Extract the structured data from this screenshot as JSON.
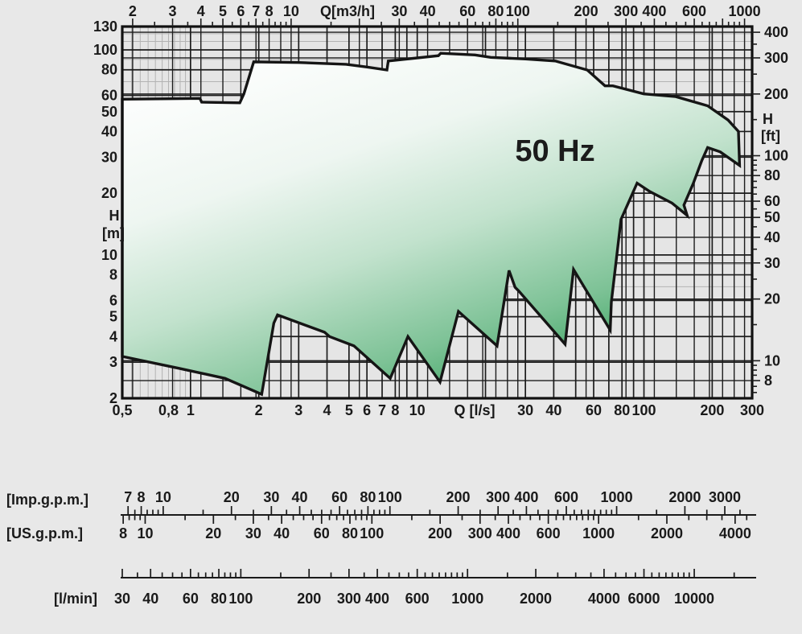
{
  "chart_data": {
    "type": "area",
    "title": "50 Hz",
    "x_axis_bottom": {
      "label": "Q [l/s]",
      "min": 0.5,
      "max": 300,
      "labeled_ticks": [
        {
          "v": 0.5,
          "t": "0,5"
        },
        {
          "v": 0.8,
          "t": "0,8"
        },
        {
          "v": 1,
          "t": "1"
        },
        {
          "v": 2,
          "t": "2"
        },
        {
          "v": 3,
          "t": "3"
        },
        {
          "v": 4,
          "t": "4"
        },
        {
          "v": 5,
          "t": "5"
        },
        {
          "v": 6,
          "t": "6"
        },
        {
          "v": 7,
          "t": "7"
        },
        {
          "v": 8,
          "t": "8"
        },
        {
          "v": 10,
          "t": "10"
        },
        {
          "v": 30,
          "t": "30"
        },
        {
          "v": 40,
          "t": "40"
        },
        {
          "v": 60,
          "t": "60"
        },
        {
          "v": 80,
          "t": "80"
        },
        {
          "v": 100,
          "t": "100"
        },
        {
          "v": 200,
          "t": "200"
        },
        {
          "v": 300,
          "t": "300"
        }
      ]
    },
    "x_axis_top": {
      "label": "Q[m3/h]",
      "factor_from_ls": 3.6,
      "labeled_ticks": [
        2,
        3,
        4,
        5,
        6,
        7,
        8,
        10,
        30,
        40,
        60,
        80,
        100,
        200,
        300,
        400,
        600,
        1000
      ],
      "major_ticks": [
        2,
        3,
        4,
        5,
        6,
        7,
        8,
        10,
        20,
        30,
        40,
        60,
        80,
        100,
        200,
        300,
        400,
        600,
        800,
        1000
      ]
    },
    "y_axis_left": {
      "label_lines": [
        "H",
        "[m]"
      ],
      "min": 2,
      "max": 130,
      "labeled_ticks": [
        130,
        100,
        80,
        60,
        50,
        40,
        30,
        20,
        10,
        8,
        6,
        5,
        4,
        3,
        2
      ]
    },
    "y_axis_right": {
      "label_lines": [
        "H",
        "[ft]"
      ],
      "factor_from_m": 3.2808,
      "labeled_ticks": [
        400,
        300,
        200,
        100,
        80,
        60,
        50,
        40,
        30,
        20,
        10,
        8
      ]
    },
    "gridlines": {
      "vertical_ls": [
        1,
        2,
        3,
        4,
        5,
        6,
        7,
        8,
        9,
        10,
        20,
        30,
        40,
        50,
        60,
        70,
        80,
        90,
        100,
        200
      ],
      "vertical_ls_light": [
        0.55,
        0.6,
        0.65,
        0.7,
        0.75,
        0.8,
        0.85,
        0.9,
        0.95
      ],
      "vertical_m3h": [
        2,
        3,
        4,
        5,
        6,
        7,
        8,
        9,
        10,
        20,
        30,
        40,
        50,
        60,
        70,
        80,
        90,
        100,
        200,
        300,
        400,
        500,
        600,
        700,
        800,
        900,
        1000
      ],
      "horizontal_m": [
        3,
        4,
        5,
        6,
        8,
        10,
        20,
        30,
        40,
        50,
        60,
        80,
        100
      ],
      "horizontal_m_light": [
        7,
        9,
        70,
        90,
        110,
        120
      ],
      "horizontal_ft": [
        8,
        10,
        20,
        30,
        40,
        50,
        60,
        80,
        100,
        200,
        300,
        400
      ]
    },
    "envelope_QH": [
      [
        0.5,
        57.5
      ],
      [
        1.1,
        58.0
      ],
      [
        1.12,
        55.6
      ],
      [
        1.65,
        55.2
      ],
      [
        1.72,
        61
      ],
      [
        1.9,
        87.4
      ],
      [
        3.0,
        86.8
      ],
      [
        4.85,
        85.1
      ],
      [
        6.0,
        82.5
      ],
      [
        7.35,
        79.8
      ],
      [
        7.45,
        88.3
      ],
      [
        12.4,
        93.7
      ],
      [
        12.7,
        96.3
      ],
      [
        18,
        94.5
      ],
      [
        21.1,
        92
      ],
      [
        30,
        90.3
      ],
      [
        40.6,
        88.3
      ],
      [
        56.2,
        79.8
      ],
      [
        67.3,
        66.8
      ],
      [
        72.9,
        66.8
      ],
      [
        99.8,
        61
      ],
      [
        138,
        59.2
      ],
      [
        191,
        53.4
      ],
      [
        235,
        45.5
      ],
      [
        261,
        40.0
      ],
      [
        264,
        27.3
      ],
      [
        217,
        31.8
      ],
      [
        191,
        33.4
      ],
      [
        180,
        28.9
      ],
      [
        165,
        22.3
      ],
      [
        150,
        17.5
      ],
      [
        155,
        15.6
      ],
      [
        133,
        17.9
      ],
      [
        106,
        20.4
      ],
      [
        93.3,
        22.4
      ],
      [
        79.2,
        14.9
      ],
      [
        71.8,
        5.9
      ],
      [
        71,
        4.3
      ],
      [
        48.9,
        8.5
      ],
      [
        44.9,
        3.67
      ],
      [
        28.1,
        6.66
      ],
      [
        27,
        6.95
      ],
      [
        25.4,
        8.4
      ],
      [
        22.5,
        3.6
      ],
      [
        15.2,
        5.3
      ],
      [
        12.6,
        2.4
      ],
      [
        9.1,
        4.0
      ],
      [
        7.6,
        2.5
      ],
      [
        5.26,
        3.6
      ],
      [
        4.1,
        4.0
      ],
      [
        3.9,
        4.2
      ],
      [
        2.42,
        5.1
      ],
      [
        2.33,
        4.65
      ],
      [
        2.06,
        2.09
      ],
      [
        1.42,
        2.5
      ],
      [
        0.89,
        2.8
      ],
      [
        0.5,
        3.2
      ]
    ],
    "rulers": [
      {
        "label": "[Imp.g.p.m.]",
        "per_ls": 13.198,
        "labeled_ticks": [
          7,
          8,
          10,
          20,
          30,
          40,
          60,
          80,
          100,
          200,
          300,
          400,
          600,
          1000,
          2000,
          3000
        ]
      },
      {
        "label": "[US.g.p.m.]",
        "per_ls": 15.85,
        "labeled_ticks": [
          8,
          10,
          20,
          30,
          40,
          60,
          80,
          100,
          200,
          300,
          400,
          600,
          1000,
          2000,
          4000
        ]
      },
      {
        "label": "[l/min]",
        "per_ls": 60,
        "labeled_ticks": [
          30,
          40,
          60,
          80,
          100,
          200,
          300,
          400,
          600,
          1000,
          2000,
          4000,
          6000,
          10000
        ]
      }
    ],
    "colors": {
      "page_bg": "#e8e8e8",
      "plot_bg": "#e5e5e5",
      "grid_dark": "#1c1c1c",
      "grid_light": "#b3b3b3",
      "border": "#111111",
      "envelope_stroke": "#151515",
      "green_deep": "#2f9e57",
      "green_mid": "#7dc296",
      "green_pale": "#c2e2cd",
      "white": "#ffffff",
      "text": "#1a1a1a"
    }
  }
}
